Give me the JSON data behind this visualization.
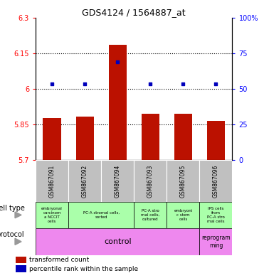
{
  "title": "GDS4124 / 1564887_at",
  "samples": [
    "GSM867091",
    "GSM867092",
    "GSM867094",
    "GSM867093",
    "GSM867095",
    "GSM867096"
  ],
  "bar_values": [
    5.875,
    5.882,
    6.185,
    5.893,
    5.895,
    5.863
  ],
  "dot_values": [
    6.02,
    6.02,
    6.115,
    6.02,
    6.02,
    6.02
  ],
  "ylim_left": [
    5.7,
    6.3
  ],
  "ylim_right": [
    0,
    100
  ],
  "yticks_left": [
    5.7,
    5.85,
    6.0,
    6.15,
    6.3
  ],
  "yticks_right": [
    0,
    25,
    50,
    75,
    100
  ],
  "ytick_labels_left": [
    "5.7",
    "5.85",
    "6",
    "6.15",
    "6.3"
  ],
  "ytick_labels_right": [
    "0",
    "25",
    "50",
    "75",
    "100%"
  ],
  "hlines": [
    5.85,
    6.0,
    6.15
  ],
  "bar_color": "#bb1100",
  "dot_color": "#0000bb",
  "bar_bottom": 5.7,
  "cell_groups": [
    {
      "cs": 0,
      "ce": 1,
      "label": "embryonal\ncarcinom\na NCCIT\ncells"
    },
    {
      "cs": 1,
      "ce": 3,
      "label": "PC-A stromal cells,\nsorted"
    },
    {
      "cs": 3,
      "ce": 4,
      "label": "PC-A stro\nmal cells,\ncultured"
    },
    {
      "cs": 4,
      "ce": 5,
      "label": "embryoni\nc stem\ncells"
    },
    {
      "cs": 5,
      "ce": 6,
      "label": "IPS cells\nfrom\nPC-A stro\nmal cells"
    }
  ],
  "prot_groups": [
    {
      "cs": 0,
      "ce": 5,
      "label": "control"
    },
    {
      "cs": 5,
      "ce": 6,
      "label": "reprogram\nming"
    }
  ],
  "cell_bg": "#aaffaa",
  "prot_bg": "#ee88ee",
  "header_bg": "#c0c0c0",
  "legend_red_label": "transformed count",
  "legend_blue_label": "percentile rank within the sample",
  "cell_type_label": "cell type",
  "protocol_label": "protocol"
}
